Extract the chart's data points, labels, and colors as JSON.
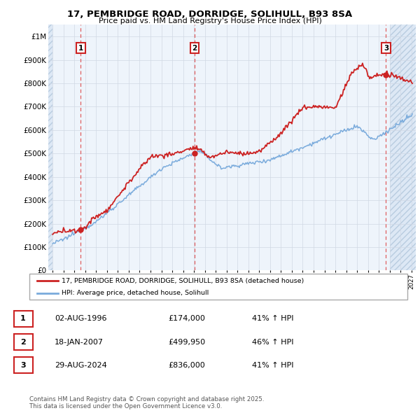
{
  "title_line1": "17, PEMBRIDGE ROAD, DORRIDGE, SOLIHULL, B93 8SA",
  "title_line2": "Price paid vs. HM Land Registry's House Price Index (HPI)",
  "ylabel_ticks": [
    "£0",
    "£100K",
    "£200K",
    "£300K",
    "£400K",
    "£500K",
    "£600K",
    "£700K",
    "£800K",
    "£900K",
    "£1M"
  ],
  "ytick_values": [
    0,
    100000,
    200000,
    300000,
    400000,
    500000,
    600000,
    700000,
    800000,
    900000,
    1000000
  ],
  "ylim": [
    0,
    1050000
  ],
  "xlim_start": 1993.6,
  "xlim_end": 2027.4,
  "hatch_left_end": 1994.0,
  "hatch_right_start": 2025.0,
  "sale_dates": [
    1996.58,
    2007.04,
    2024.66
  ],
  "sale_prices": [
    174000,
    499950,
    836000
  ],
  "sale_labels": [
    "1",
    "2",
    "3"
  ],
  "legend_line1": "17, PEMBRIDGE ROAD, DORRIDGE, SOLIHULL, B93 8SA (detached house)",
  "legend_line2": "HPI: Average price, detached house, Solihull",
  "table_rows": [
    {
      "num": "1",
      "date": "02-AUG-1996",
      "price": "£174,000",
      "pct": "41% ↑ HPI"
    },
    {
      "num": "2",
      "date": "18-JAN-2007",
      "price": "£499,950",
      "pct": "46% ↑ HPI"
    },
    {
      "num": "3",
      "date": "29-AUG-2024",
      "price": "£836,000",
      "pct": "41% ↑ HPI"
    }
  ],
  "footer": "Contains HM Land Registry data © Crown copyright and database right 2025.\nThis data is licensed under the Open Government Licence v3.0.",
  "hpi_color": "#7aabdc",
  "price_color": "#cc2222",
  "vline_color": "#dd4444",
  "box_color": "#cc2222",
  "plot_bg": "#eef4fb",
  "grid_color": "#d0d8e4",
  "hatch_bg": "#dde8f5"
}
